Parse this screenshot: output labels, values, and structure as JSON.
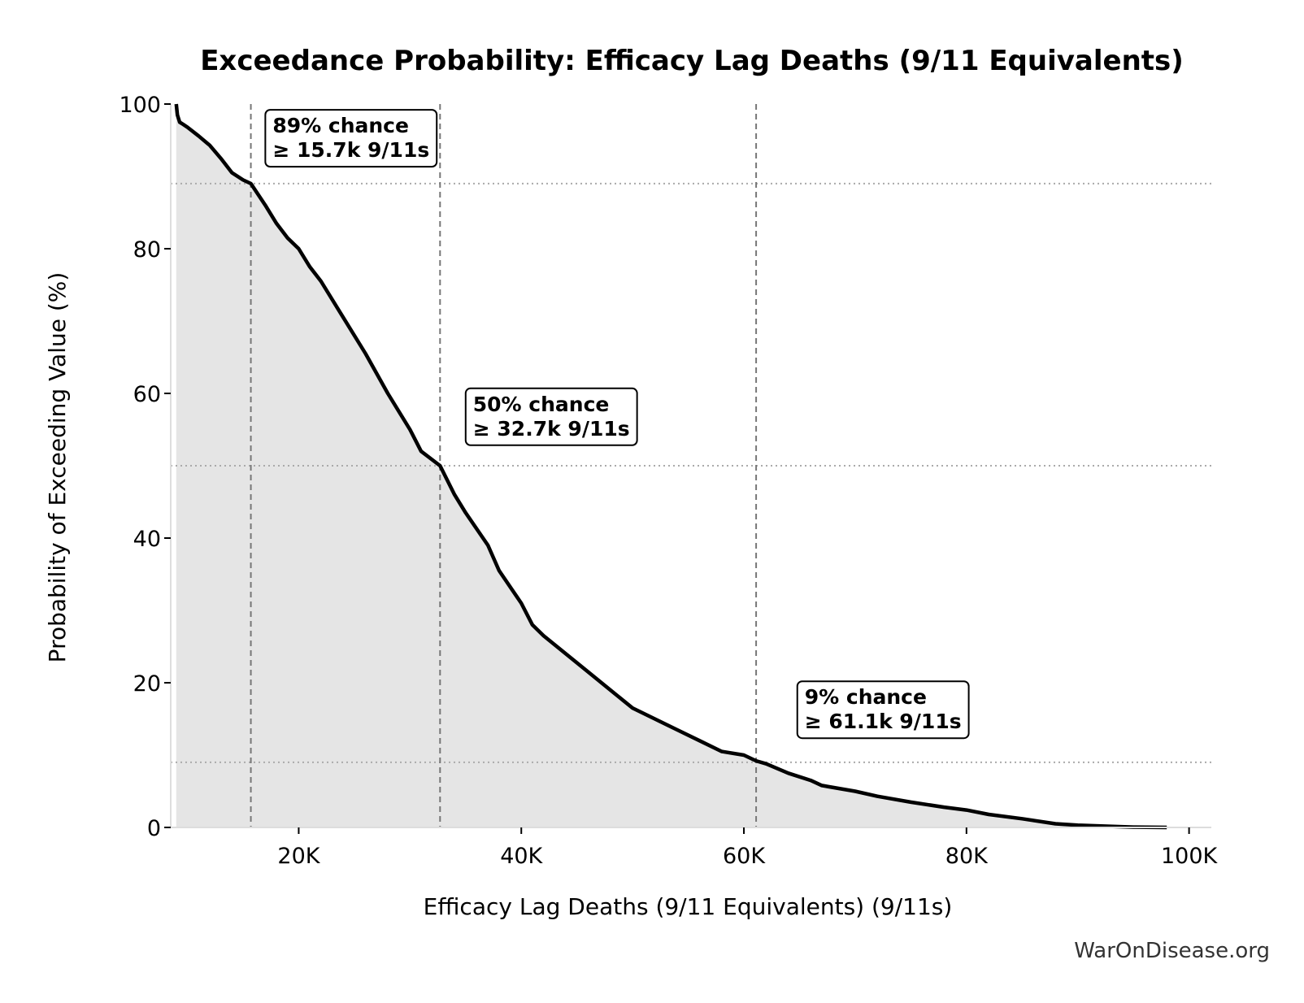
{
  "chart_data": {
    "type": "area",
    "title": "Exceedance Probability: Efficacy Lag Deaths (9/11 Equivalents)",
    "xlabel": "Efficacy Lag Deaths (9/11 Equivalents) (9/11s)",
    "ylabel": "Probability of Exceeding Value (%)",
    "xlim": [
      8500,
      102000
    ],
    "ylim": [
      0,
      100
    ],
    "x_ticks": [
      20000,
      40000,
      60000,
      80000,
      100000
    ],
    "x_tick_labels": [
      "20K",
      "40K",
      "60K",
      "80K",
      "100K"
    ],
    "y_ticks": [
      0,
      20,
      40,
      60,
      80,
      100
    ],
    "y_tick_labels": [
      "0",
      "20",
      "40",
      "60",
      "80",
      "100"
    ],
    "grid": false,
    "series": [
      {
        "x": [
          9000,
          9100,
          9300,
          9600,
          10000,
          11000,
          12000,
          13000,
          14000,
          15000,
          15700,
          17000,
          18000,
          19000,
          20000,
          21000,
          22000,
          24000,
          26000,
          28000,
          30000,
          31000,
          32700,
          34000,
          35000,
          37000,
          38000,
          40000,
          41000,
          42000,
          44000,
          46000,
          48000,
          50000,
          52000,
          54000,
          56000,
          58000,
          60000,
          61100,
          62000,
          64000,
          66000,
          67000,
          70000,
          72000,
          75000,
          78000,
          80000,
          82000,
          85000,
          88000,
          90000,
          95000,
          98000
        ],
        "y": [
          100,
          98.5,
          97.5,
          97.2,
          96.8,
          95.6,
          94.3,
          92.5,
          90.5,
          89.5,
          89,
          86,
          83.5,
          81.5,
          80,
          77.5,
          75.5,
          70.5,
          65.5,
          60,
          55,
          52,
          50,
          46,
          43.5,
          39,
          35.5,
          31,
          28,
          26.5,
          24,
          21.5,
          19,
          16.5,
          15,
          13.5,
          12,
          10.5,
          10,
          9.2,
          8.8,
          7.5,
          6.5,
          5.8,
          5,
          4.3,
          3.5,
          2.8,
          2.4,
          1.8,
          1.2,
          0.5,
          0.3,
          0.05,
          0
        ]
      }
    ],
    "reference_lines": {
      "vertical_x": [
        15700,
        32700,
        61100
      ],
      "horizontal_y": [
        89,
        50,
        9
      ]
    },
    "annotations": [
      {
        "line1": "89% chance",
        "line2": "≥ 15.7k 9/11s",
        "x": 17000,
        "y": 99.2
      },
      {
        "line1": "50% chance",
        "line2": "≥ 32.7k 9/11s",
        "x": 35000,
        "y": 60.7
      },
      {
        "line1": "9% chance",
        "line2": "≥ 61.1k 9/11s",
        "x": 64800,
        "y": 20.2
      }
    ],
    "colors": {
      "line": "#000000",
      "fill": "#e5e5e5",
      "ref_line": "#777777",
      "grid_dotted": "#aaaaaa"
    }
  },
  "watermark": "WarOnDisease.org"
}
